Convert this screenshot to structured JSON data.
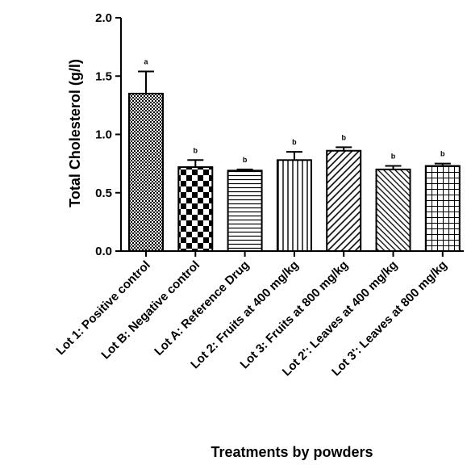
{
  "chart_data": {
    "type": "bar",
    "title": "",
    "xlabel": "Treatments by powders",
    "ylabel": "Total Cholesterol (g/l)",
    "ylim": [
      0.0,
      2.0
    ],
    "yticks": [
      "0.0",
      "0.5",
      "1.0",
      "1.5",
      "2.0"
    ],
    "grid": false,
    "legend": "none",
    "categories": [
      "Lot 1: Positive control",
      "Lot B: Negative control",
      "Lot A: Reference Drug",
      "Lot 2: Fruits at 400 mg/kg",
      "Lot 3: Fruits at 800 mg/kg",
      "Lot 2': Leaves at 400 mg/kg",
      "Lot 3': Leaves at 800 mg/kg"
    ],
    "values": [
      1.35,
      0.72,
      0.69,
      0.78,
      0.86,
      0.7,
      0.73
    ],
    "errors": [
      0.19,
      0.06,
      0.01,
      0.07,
      0.03,
      0.03,
      0.02
    ],
    "significance": [
      "a",
      "b",
      "b",
      "b",
      "b",
      "b",
      "b"
    ],
    "patterns": [
      "dense-check",
      "checkerboard",
      "horizontal-lines",
      "vertical-lines",
      "diagonal-up",
      "diagonal-down",
      "grid"
    ],
    "colors": {
      "bar_stroke": "#000000",
      "bar_fill": "#ffffff"
    }
  }
}
